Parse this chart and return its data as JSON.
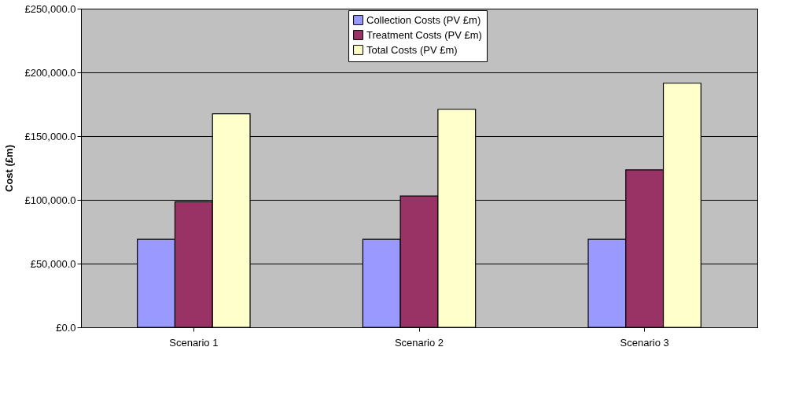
{
  "chart_data": {
    "type": "bar",
    "ylabel": "Cost (£m)",
    "categories": [
      "Scenario 1",
      "Scenario 2",
      "Scenario 3"
    ],
    "series": [
      {
        "name": "Collection Costs (PV £m)",
        "color": "#9999ff",
        "values": [
          69000,
          69000,
          69000
        ]
      },
      {
        "name": "Treatment Costs (PV £m)",
        "color": "#993366",
        "values": [
          98500,
          103000,
          123500
        ]
      },
      {
        "name": "Total Costs (PV £m)",
        "color": "#ffffcc",
        "values": [
          167500,
          171000,
          191500
        ]
      }
    ],
    "ylim": [
      0,
      250000
    ],
    "yticks": [
      {
        "value": 0,
        "label": "£0.0"
      },
      {
        "value": 50000,
        "label": "£50,000.0"
      },
      {
        "value": 100000,
        "label": "£100,000.0"
      },
      {
        "value": 150000,
        "label": "£150,000.0"
      },
      {
        "value": 200000,
        "label": "£200,000.0"
      },
      {
        "value": 250000,
        "label": "£250,000.0"
      }
    ],
    "grid": "y",
    "legend": "top"
  }
}
